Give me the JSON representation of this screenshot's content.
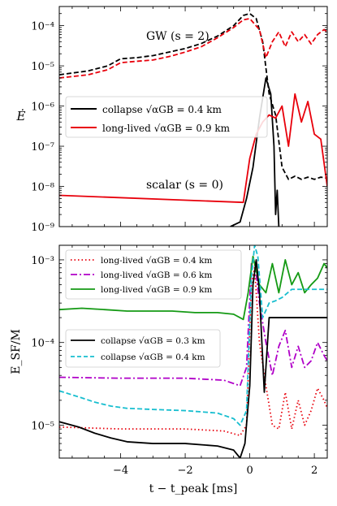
{
  "chart_data": [
    {
      "type": "line",
      "ylabel": "Ė",
      "yscale": "log",
      "xlim": [
        -5.9,
        2.4
      ],
      "ylim": [
        1e-09,
        0.0003
      ],
      "x_ticks": [
        -4,
        -2,
        0,
        2
      ],
      "y_ticks": [
        {
          "value": 1e-09,
          "label": "10⁻⁹"
        },
        {
          "value": 1e-08,
          "label": "10⁻⁸"
        },
        {
          "value": 1e-07,
          "label": "10⁻⁷"
        },
        {
          "value": 1e-06,
          "label": "10⁻⁶"
        },
        {
          "value": 1e-05,
          "label": "10⁻⁵"
        },
        {
          "value": 0.0001,
          "label": "10⁻⁴"
        }
      ],
      "annotations": [
        {
          "text": "GW (s = 2)",
          "x": -1.7,
          "y": 0.00013
        },
        {
          "text": "scalar (s = 0)",
          "x": -1.7,
          "y": 1.3e-08
        }
      ],
      "legend": {
        "placement": "center-left",
        "entries": [
          "collapse √αGB = 0.4 km",
          "long-lived √αGB = 0.9 km"
        ]
      },
      "series": [
        {
          "name": "collapse √αGB = 0.4 km",
          "component": "GW",
          "color": "#000000",
          "dash": "dashed",
          "x": [
            -5.9,
            -5.0,
            -4.4,
            -4.0,
            -3.5,
            -3.0,
            -2.5,
            -2.0,
            -1.5,
            -1.0,
            -0.5,
            -0.2,
            0.0,
            0.2,
            0.4,
            0.6,
            0.8,
            1.0,
            1.2,
            1.4,
            1.6,
            1.8,
            2.0,
            2.2,
            2.4
          ],
          "y": [
            6e-06,
            7.5e-06,
            1e-05,
            1.5e-05,
            1.6e-05,
            1.8e-05,
            2.2e-05,
            2.7e-05,
            3.6e-05,
            5.5e-05,
            0.0001,
            0.00018,
            0.0002,
            0.00015,
            4e-05,
            2e-06,
            6e-07,
            3e-08,
            1.5e-08,
            1.8e-08,
            1.5e-08,
            1.7e-08,
            1.5e-08,
            1.7e-08,
            1.6e-08
          ]
        },
        {
          "name": "long-lived √αGB = 0.9 km",
          "component": "GW",
          "color": "#e8000b",
          "dash": "dashed",
          "x": [
            -5.9,
            -5.0,
            -4.4,
            -4.0,
            -3.5,
            -3.0,
            -2.5,
            -2.0,
            -1.5,
            -1.0,
            -0.5,
            -0.2,
            0.0,
            0.3,
            0.5,
            0.7,
            0.9,
            1.1,
            1.3,
            1.5,
            1.7,
            1.9,
            2.1,
            2.3,
            2.4
          ],
          "y": [
            5e-06,
            6e-06,
            8e-06,
            1.2e-05,
            1.3e-05,
            1.4e-05,
            1.7e-05,
            2.2e-05,
            3e-05,
            5e-05,
            9e-05,
            0.00014,
            0.00015,
            8e-05,
            1.6e-05,
            4e-05,
            7e-05,
            3e-05,
            7e-05,
            4e-05,
            6e-05,
            3.5e-05,
            6e-05,
            8e-05,
            7e-05
          ]
        },
        {
          "name": "collapse √αGB = 0.4 km",
          "component": "scalar",
          "color": "#000000",
          "dash": "solid",
          "x": [
            -0.6,
            -0.3,
            -0.1,
            0.1,
            0.3,
            0.5,
            0.65,
            0.75,
            0.8,
            0.85,
            0.9
          ],
          "y": [
            1e-09,
            1.3e-09,
            5e-09,
            3e-08,
            5e-07,
            5e-06,
            2e-06,
            1e-07,
            2e-09,
            8e-09,
            1e-09
          ]
        },
        {
          "name": "long-lived √αGB = 0.9 km",
          "component": "scalar",
          "color": "#e8000b",
          "dash": "solid",
          "x": [
            -5.9,
            -0.2,
            0.0,
            0.2,
            0.4,
            0.6,
            0.8,
            1.0,
            1.2,
            1.4,
            1.6,
            1.8,
            2.0,
            2.2,
            2.4
          ],
          "y": [
            6e-09,
            4e-09,
            5e-08,
            2e-07,
            4e-07,
            6e-07,
            5e-07,
            1e-06,
            1e-07,
            2e-06,
            4e-07,
            1.3e-06,
            2e-07,
            1.5e-07,
            1e-08
          ]
        }
      ]
    },
    {
      "type": "line",
      "ylabel": "E_SF/M",
      "xlabel": "t − t_peak [ms]",
      "yscale": "log",
      "xlim": [
        -5.9,
        2.4
      ],
      "ylim": [
        4e-06,
        0.0015
      ],
      "x_ticks": [
        -4,
        -2,
        0,
        2
      ],
      "y_ticks": [
        {
          "value": 1e-05,
          "label": "10⁻⁵"
        },
        {
          "value": 0.0001,
          "label": "10⁻⁴"
        },
        {
          "value": 0.001,
          "label": "10⁻³"
        }
      ],
      "legends": [
        {
          "placement": "top-left",
          "entries": [
            "long-lived √αGB = 0.4 km",
            "long-lived √αGB = 0.6 km",
            "long-lived √αGB = 0.9 km"
          ]
        },
        {
          "placement": "center-left",
          "entries": [
            "collapse √αGB = 0.3 km",
            "collapse √αGB = 0.4 km"
          ]
        }
      ],
      "series": [
        {
          "name": "long-lived √αGB = 0.4 km",
          "color": "#e8000b",
          "dash": "dotted",
          "x": [
            -5.9,
            -4.0,
            -2.0,
            -0.8,
            -0.3,
            -0.1,
            0.05,
            0.15,
            0.3,
            0.5,
            0.7,
            0.9,
            1.1,
            1.3,
            1.5,
            1.7,
            1.9,
            2.1,
            2.3,
            2.4
          ],
          "y": [
            9.5e-06,
            9e-06,
            9e-06,
            8.5e-06,
            7.5e-06,
            1e-05,
            0.0005,
            0.0008,
            0.0001,
            3e-05,
            1e-05,
            9e-06,
            2.5e-05,
            9e-06,
            2e-05,
            1e-05,
            1.5e-05,
            2.8e-05,
            2e-05,
            1.6e-05
          ]
        },
        {
          "name": "long-lived √αGB = 0.6 km",
          "color": "#b000c8",
          "dash": "dashdot",
          "x": [
            -5.9,
            -4.0,
            -2.0,
            -0.8,
            -0.3,
            -0.1,
            0.05,
            0.15,
            0.3,
            0.5,
            0.7,
            0.9,
            1.1,
            1.3,
            1.5,
            1.7,
            1.9,
            2.1,
            2.3,
            2.4
          ],
          "y": [
            3.8e-05,
            3.7e-05,
            3.7e-05,
            3.5e-05,
            3e-05,
            5e-05,
            0.0009,
            0.001,
            0.0003,
            0.0001,
            4e-05,
            9e-05,
            0.00014,
            5e-05,
            9e-05,
            5e-05,
            6e-05,
            0.0001,
            7e-05,
            6e-05
          ]
        },
        {
          "name": "long-lived √αGB = 0.9 km",
          "color": "#159a15",
          "dash": "solid",
          "x": [
            -5.9,
            -5.2,
            -4.5,
            -3.8,
            -3.1,
            -2.4,
            -1.7,
            -1.0,
            -0.5,
            -0.2,
            -0.05,
            0.1,
            0.3,
            0.5,
            0.7,
            0.9,
            1.1,
            1.3,
            1.5,
            1.7,
            1.9,
            2.1,
            2.3,
            2.4
          ],
          "y": [
            0.00025,
            0.00026,
            0.00025,
            0.00024,
            0.00024,
            0.00024,
            0.00023,
            0.00023,
            0.00022,
            0.00019,
            0.0004,
            0.0011,
            0.0005,
            0.0004,
            0.0009,
            0.0004,
            0.001,
            0.0005,
            0.0007,
            0.0004,
            0.0005,
            0.0006,
            0.0009,
            0.0008
          ]
        },
        {
          "name": "collapse √αGB = 0.3 km",
          "color": "#000000",
          "dash": "solid",
          "x": [
            -5.9,
            -5.3,
            -4.8,
            -4.3,
            -3.8,
            -3.0,
            -2.0,
            -1.0,
            -0.5,
            -0.3,
            -0.15,
            0.0,
            0.1,
            0.2,
            0.3,
            0.45,
            0.6,
            1.0,
            1.5,
            2.0,
            2.4
          ],
          "y": [
            1.1e-05,
            9.5e-06,
            8e-06,
            7e-06,
            6.3e-06,
            6e-06,
            6e-06,
            5.6e-06,
            5e-06,
            4e-06,
            6e-06,
            3e-05,
            0.0005,
            0.001,
            0.0004,
            2.5e-05,
            0.0002,
            0.0002,
            0.0002,
            0.0002,
            0.0002
          ]
        },
        {
          "name": "collapse √αGB = 0.4 km",
          "color": "#17becf",
          "dash": "dashed",
          "x": [
            -5.9,
            -5.3,
            -4.8,
            -4.3,
            -3.8,
            -3.0,
            -2.0,
            -1.0,
            -0.5,
            -0.3,
            -0.1,
            0.05,
            0.15,
            0.25,
            0.4,
            0.6,
            0.8,
            1.0,
            1.3,
            1.6,
            2.0,
            2.4
          ],
          "y": [
            2.6e-05,
            2.2e-05,
            1.9e-05,
            1.7e-05,
            1.6e-05,
            1.55e-05,
            1.5e-05,
            1.4e-05,
            1.2e-05,
            1e-05,
            1.5e-05,
            0.0006,
            0.0015,
            0.0011,
            0.0002,
            0.0003,
            0.00032,
            0.00035,
            0.00044,
            0.00044,
            0.00044,
            0.00044
          ]
        }
      ]
    }
  ]
}
